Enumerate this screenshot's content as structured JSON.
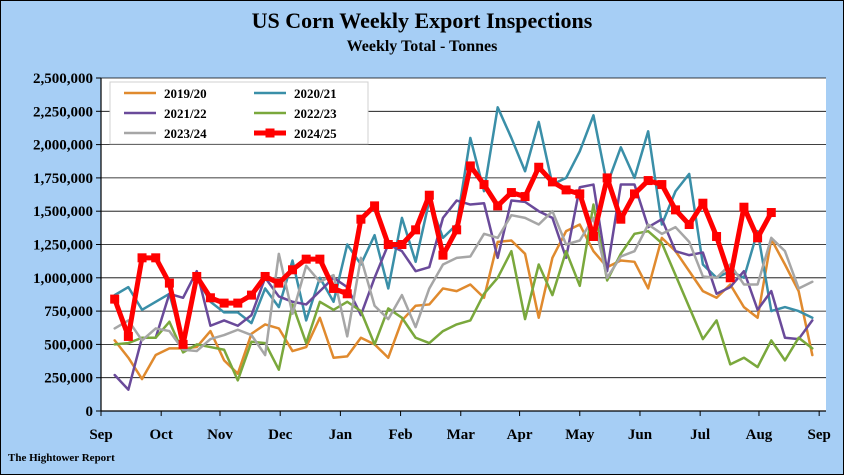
{
  "title": "US Corn Weekly Export Inspections",
  "subtitle": "Weekly Total - Tonnes",
  "credit": "The Hightower Report",
  "chart_data": {
    "type": "line",
    "title": "US Corn Weekly Export Inspections",
    "subtitle": "Weekly Total - Tonnes",
    "xlabel": "",
    "ylabel": "",
    "ylim": [
      0,
      2500000
    ],
    "yticks": [
      0,
      250000,
      500000,
      750000,
      1000000,
      1250000,
      1500000,
      1750000,
      2000000,
      2250000,
      2500000
    ],
    "ytick_labels": [
      "0",
      "250,000",
      "500,000",
      "750,000",
      "1,000,000",
      "1,250,000",
      "1,500,000",
      "1,750,000",
      "2,000,000",
      "2,250,000",
      "2,500,000"
    ],
    "xlim": [
      0,
      53
    ],
    "x_unit": "week of marketing year (Sep-Aug)",
    "xticks": [
      0,
      4.4,
      8.7,
      13.1,
      17.5,
      21.9,
      26.3,
      30.6,
      35,
      39.4,
      43.8,
      48.1,
      52.5
    ],
    "xtick_labels": [
      "Sep",
      "Oct",
      "Nov",
      "Dec",
      "Jan",
      "Feb",
      "Mar",
      "Apr",
      "May",
      "Jun",
      "Jul",
      "Aug",
      "Sep"
    ],
    "grid": true,
    "legend_position": "top-left",
    "series": [
      {
        "name": "2019/20",
        "color": "#e08a2e",
        "width": 2.5,
        "markers": false,
        "values": [
          530000,
          400000,
          240000,
          420000,
          470000,
          470000,
          480000,
          600000,
          380000,
          280000,
          580000,
          650000,
          620000,
          450000,
          480000,
          700000,
          400000,
          410000,
          550000,
          500000,
          400000,
          680000,
          790000,
          800000,
          920000,
          900000,
          950000,
          850000,
          1270000,
          1280000,
          1180000,
          700000,
          1150000,
          1350000,
          1400000,
          1200000,
          1080000,
          1130000,
          1120000,
          920000,
          1300000,
          1200000,
          1050000,
          900000,
          850000,
          950000,
          780000,
          700000,
          1290000,
          1100000,
          900000,
          420000
        ]
      },
      {
        "name": "2020/21",
        "color": "#3a8fa8",
        "width": 2.5,
        "markers": false,
        "values": [
          870000,
          930000,
          760000,
          820000,
          880000,
          510000,
          1000000,
          820000,
          740000,
          740000,
          660000,
          920000,
          780000,
          1130000,
          680000,
          1000000,
          820000,
          1250000,
          1100000,
          1320000,
          920000,
          1450000,
          1120000,
          1580000,
          1300000,
          1400000,
          2050000,
          1650000,
          2280000,
          2050000,
          1800000,
          2170000,
          1700000,
          1750000,
          1950000,
          2220000,
          1700000,
          1980000,
          1750000,
          2100000,
          1400000,
          1650000,
          1780000,
          1100000,
          1000000,
          1050000,
          1000000,
          1350000,
          750000,
          780000,
          750000,
          700000
        ]
      },
      {
        "name": "2021/22",
        "color": "#6a4a9a",
        "width": 2.5,
        "markers": false,
        "values": [
          270000,
          160000,
          550000,
          550000,
          880000,
          850000,
          1050000,
          640000,
          680000,
          640000,
          720000,
          1000000,
          860000,
          820000,
          800000,
          900000,
          1000000,
          930000,
          720000,
          1000000,
          1250000,
          1200000,
          1050000,
          1080000,
          1450000,
          1580000,
          1550000,
          1560000,
          1150000,
          1580000,
          1570000,
          1500000,
          1450000,
          1150000,
          1680000,
          1700000,
          1050000,
          1700000,
          1700000,
          1380000,
          1440000,
          1200000,
          1170000,
          1190000,
          880000,
          930000,
          1050000,
          760000,
          900000,
          550000,
          540000,
          680000
        ]
      },
      {
        "name": "2022/23",
        "color": "#7aa83c",
        "width": 2.5,
        "markers": false,
        "values": [
          500000,
          510000,
          550000,
          550000,
          670000,
          440000,
          500000,
          480000,
          460000,
          230000,
          520000,
          510000,
          310000,
          800000,
          510000,
          820000,
          760000,
          820000,
          750000,
          500000,
          770000,
          700000,
          550000,
          510000,
          600000,
          650000,
          680000,
          880000,
          1000000,
          1200000,
          690000,
          1100000,
          870000,
          1200000,
          940000,
          1550000,
          980000,
          1180000,
          1330000,
          1350000,
          1260000,
          1020000,
          780000,
          540000,
          680000,
          350000,
          400000,
          330000,
          530000,
          380000,
          550000,
          470000
        ]
      },
      {
        "name": "2023/24",
        "color": "#a6a6a6",
        "width": 2.5,
        "markers": false,
        "values": [
          620000,
          680000,
          530000,
          620000,
          600000,
          460000,
          450000,
          540000,
          570000,
          610000,
          570000,
          420000,
          1180000,
          730000,
          1090000,
          970000,
          1020000,
          560000,
          1150000,
          790000,
          690000,
          870000,
          630000,
          920000,
          1100000,
          1150000,
          1160000,
          1330000,
          1300000,
          1470000,
          1450000,
          1400000,
          1500000,
          1250000,
          1280000,
          1450000,
          1000000,
          1160000,
          1200000,
          1400000,
          1330000,
          1380000,
          1270000,
          1010000,
          1000000,
          1100000,
          950000,
          950000,
          1300000,
          1200000,
          920000,
          970000
        ]
      },
      {
        "name": "2024/25",
        "color": "#ff0000",
        "width": 5,
        "markers": true,
        "values": [
          840000,
          560000,
          1150000,
          1150000,
          960000,
          500000,
          1010000,
          850000,
          810000,
          810000,
          870000,
          1010000,
          960000,
          1060000,
          1140000,
          1140000,
          920000,
          880000,
          1440000,
          1540000,
          1250000,
          1250000,
          1360000,
          1620000,
          1170000,
          1360000,
          1840000,
          1700000,
          1540000,
          1640000,
          1610000,
          1830000,
          1720000,
          1660000,
          1630000,
          1310000,
          1750000,
          1440000,
          1630000,
          1730000,
          1700000,
          1510000,
          1400000,
          1560000,
          1310000,
          1000000,
          1530000,
          1300000,
          1490000
        ]
      }
    ]
  }
}
